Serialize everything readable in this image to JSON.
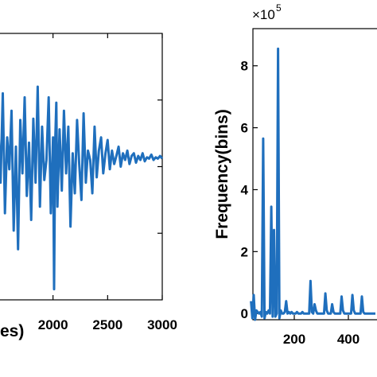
{
  "chart_data": [
    {
      "type": "line",
      "xlabel": "es)",
      "ylabel": "",
      "xlim": [
        1500,
        3000
      ],
      "x_ticks": [
        "2000",
        "2500",
        "3000"
      ],
      "x_tick_values": [
        2000,
        2500,
        3000
      ],
      "ylim": [
        -1.0,
        1.0
      ],
      "line_color": "#1f6fbd",
      "series": [
        {
          "x": [
            1500,
            1520,
            1540,
            1560,
            1580,
            1600,
            1620,
            1640,
            1660,
            1680,
            1700,
            1720,
            1740,
            1760,
            1780,
            1800,
            1820,
            1840,
            1860,
            1880,
            1900,
            1920,
            1940,
            1960,
            1980,
            2000,
            2010,
            2020,
            2030,
            2040,
            2060,
            2080,
            2100,
            2120,
            2140,
            2160,
            2180,
            2200,
            2220,
            2240,
            2260,
            2280,
            2300,
            2320,
            2340,
            2360,
            2380,
            2400,
            2420,
            2440,
            2460,
            2480,
            2500,
            2520,
            2540,
            2560,
            2580,
            2600,
            2620,
            2640,
            2660,
            2680,
            2700,
            2720,
            2740,
            2760,
            2780,
            2800,
            2820,
            2840,
            2860,
            2880,
            2900,
            2920,
            2940,
            2960,
            2980,
            3000
          ],
          "y": [
            0.28,
            -0.12,
            0.55,
            -0.35,
            0.22,
            -0.02,
            0.42,
            -0.48,
            0.15,
            -0.62,
            0.35,
            -0.05,
            0.52,
            -0.22,
            0.18,
            -0.4,
            0.36,
            -0.12,
            0.6,
            -0.3,
            0.3,
            -0.1,
            0.05,
            0.52,
            -0.35,
            0.22,
            -0.92,
            0.18,
            0.48,
            -0.3,
            0.28,
            -0.18,
            0.42,
            -0.05,
            0.3,
            -0.45,
            0.1,
            -0.2,
            0.35,
            0.02,
            -0.25,
            0.4,
            -0.12,
            0.12,
            0.05,
            -0.2,
            0.3,
            -0.08,
            0.12,
            0.22,
            -0.05,
            0.1,
            0.2,
            -0.02,
            0.12,
            0.02,
            0.08,
            0.15,
            0.0,
            0.1,
            0.05,
            0.12,
            0.02,
            0.08,
            0.1,
            0.03,
            0.08,
            0.05,
            0.1,
            0.04,
            0.07,
            0.06,
            0.09,
            0.05,
            0.07,
            0.06,
            0.08,
            0.06
          ]
        }
      ]
    },
    {
      "type": "line",
      "xlabel": "",
      "ylabel": "Frequency(bins)",
      "y_multiplier": "×10",
      "y_exponent": "5",
      "xlim": [
        40,
        640
      ],
      "x_ticks": [
        "200",
        "400"
      ],
      "x_tick_values": [
        200,
        400
      ],
      "ylim": [
        -0.2,
        9.2
      ],
      "y_ticks": [
        "0",
        "2",
        "4",
        "6",
        "8"
      ],
      "y_tick_values": [
        0,
        2,
        4,
        6,
        8
      ],
      "line_color": "#1f6fbd",
      "series": [
        {
          "x": [
            40,
            45,
            50,
            55,
            60,
            65,
            70,
            75,
            80,
            85,
            90,
            95,
            100,
            105,
            110,
            115,
            120,
            125,
            130,
            135,
            140,
            145,
            150,
            155,
            160,
            165,
            170,
            175,
            180,
            185,
            190,
            195,
            200,
            205,
            210,
            215,
            220,
            225,
            230,
            235,
            240,
            245,
            250,
            255,
            260,
            265,
            270,
            275,
            280,
            285,
            290,
            295,
            300,
            305,
            310,
            315,
            320,
            325,
            330,
            335,
            340,
            345,
            350,
            355,
            360,
            365,
            370,
            375,
            380,
            385,
            390,
            395,
            400,
            405,
            410,
            415,
            420,
            425,
            430,
            435,
            440,
            445,
            450,
            455,
            460,
            465,
            470,
            475,
            480,
            485,
            490,
            495,
            500
          ],
          "y": [
            0.4,
            -0.15,
            0.6,
            -0.2,
            0.1,
            0.05,
            0.0,
            0.05,
            -0.1,
            5.65,
            -0.15,
            0.05,
            0.0,
            0.1,
            0.0,
            3.45,
            -0.1,
            2.7,
            -0.1,
            0.0,
            8.55,
            -0.15,
            0.1,
            0.0,
            0.0,
            0.05,
            0.4,
            0.0,
            0.05,
            0.0,
            0.05,
            0.0,
            0.0,
            0.0,
            0.05,
            0.0,
            0.0,
            0.0,
            0.05,
            0.0,
            0.0,
            0.0,
            0.0,
            0.0,
            1.05,
            0.05,
            0.0,
            0.3,
            0.1,
            0.0,
            0.0,
            0.0,
            0.0,
            0.0,
            0.0,
            0.65,
            0.1,
            0.0,
            0.0,
            0.0,
            0.3,
            0.05,
            0.0,
            0.0,
            0.0,
            0.0,
            0.0,
            0.55,
            0.1,
            0.0,
            0.0,
            0.0,
            0.0,
            0.0,
            0.0,
            0.6,
            0.1,
            0.0,
            0.0,
            0.0,
            0.0,
            0.0,
            0.55,
            0.05,
            0.0,
            0.0,
            0.0,
            0.0,
            0.0,
            0.0,
            0.0,
            0.0,
            0.0
          ]
        }
      ]
    }
  ]
}
